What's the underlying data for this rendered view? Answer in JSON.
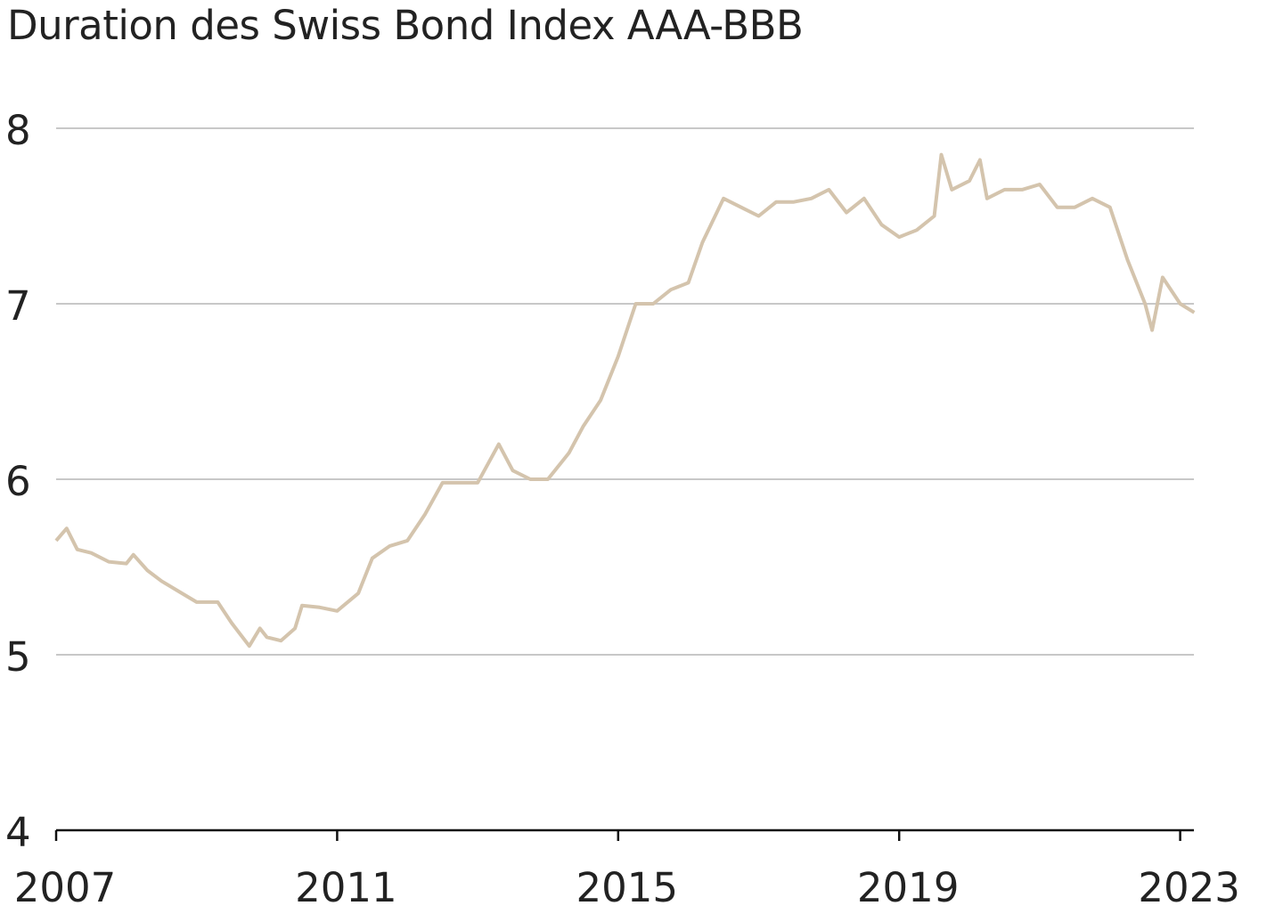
{
  "chart_data": {
    "type": "line",
    "title": "Duration des Swiss Bond Index AAA-BBB",
    "xlabel": "",
    "ylabel": "",
    "xlim": [
      2007,
      2023.25
    ],
    "ylim": [
      4,
      8
    ],
    "yticks": [
      "4",
      "5",
      "6",
      "7",
      "8"
    ],
    "xticks": [
      "2007",
      "2011",
      "2015",
      "2019",
      "2023"
    ],
    "grid": "horizontal",
    "color": "#d4c4ad",
    "series": [
      {
        "name": "Duration",
        "x": [
          2007.0,
          2007.15,
          2007.3,
          2007.5,
          2007.75,
          2008.0,
          2008.1,
          2008.3,
          2008.5,
          2008.75,
          2009.0,
          2009.3,
          2009.5,
          2009.75,
          2009.9,
          2010.0,
          2010.2,
          2010.4,
          2010.5,
          2010.75,
          2011.0,
          2011.3,
          2011.5,
          2011.75,
          2012.0,
          2012.25,
          2012.5,
          2012.75,
          2013.0,
          2013.3,
          2013.5,
          2013.75,
          2014.0,
          2014.3,
          2014.5,
          2014.75,
          2015.0,
          2015.25,
          2015.5,
          2015.75,
          2016.0,
          2016.2,
          2016.5,
          2016.75,
          2017.0,
          2017.25,
          2017.5,
          2017.75,
          2018.0,
          2018.25,
          2018.5,
          2018.75,
          2019.0,
          2019.25,
          2019.5,
          2019.6,
          2019.75,
          2020.0,
          2020.15,
          2020.25,
          2020.5,
          2020.75,
          2021.0,
          2021.25,
          2021.5,
          2021.75,
          2022.0,
          2022.25,
          2022.5,
          2022.6,
          2022.75,
          2023.0,
          2023.2
        ],
        "y": [
          5.65,
          5.72,
          5.6,
          5.58,
          5.53,
          5.52,
          5.57,
          5.48,
          5.42,
          5.36,
          5.3,
          5.3,
          5.18,
          5.05,
          5.15,
          5.1,
          5.08,
          5.15,
          5.28,
          5.27,
          5.25,
          5.35,
          5.55,
          5.62,
          5.65,
          5.8,
          5.98,
          5.98,
          5.98,
          6.2,
          6.05,
          6.0,
          6.0,
          6.15,
          6.3,
          6.45,
          6.7,
          7.0,
          7.0,
          7.08,
          7.12,
          7.35,
          7.6,
          7.55,
          7.5,
          7.58,
          7.58,
          7.6,
          7.65,
          7.52,
          7.6,
          7.45,
          7.38,
          7.42,
          7.5,
          7.85,
          7.65,
          7.7,
          7.82,
          7.6,
          7.65,
          7.65,
          7.68,
          7.55,
          7.55,
          7.6,
          7.55,
          7.25,
          7.0,
          6.85,
          7.15,
          7.0,
          6.95
        ]
      }
    ]
  }
}
